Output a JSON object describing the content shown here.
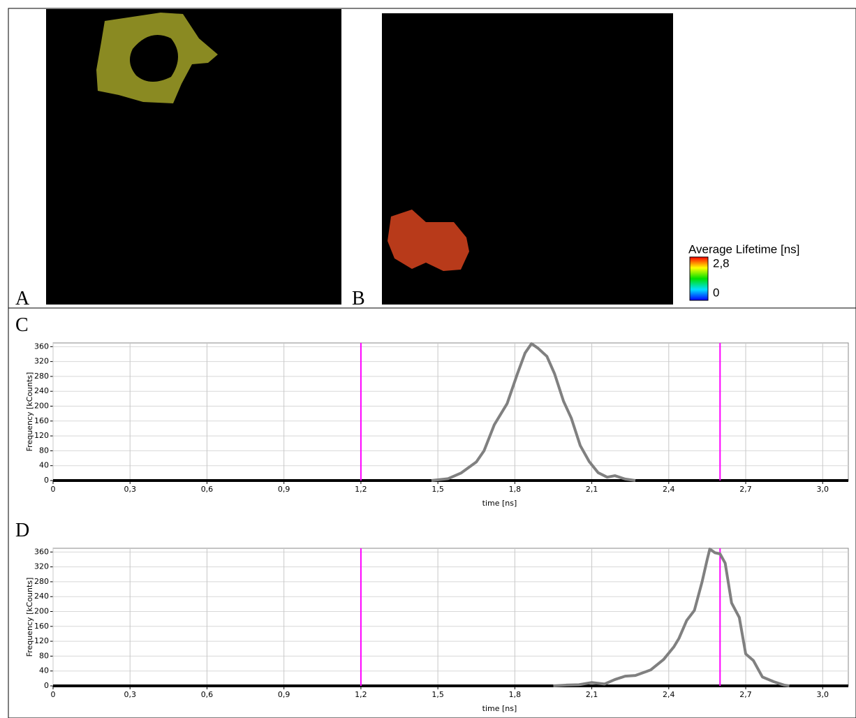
{
  "panel_labels": [
    "A",
    "B"
  ],
  "colorbar": {
    "title": "Average Lifetime [ns]",
    "ticks": [
      {
        "value": 2.8,
        "label": "2,8"
      },
      0
    ]
  },
  "chart_data": [
    {
      "type": "line",
      "label": "C",
      "xlabel": "time [ns]",
      "ylabel": "Frequency [kCounts]",
      "xlim": [
        0,
        3.1
      ],
      "ylim": [
        0,
        370
      ],
      "xticks": [
        0,
        {
          "value": 0.3,
          "label": "0,3"
        },
        {
          "value": 0.6,
          "label": "0,6"
        },
        {
          "value": 0.9,
          "label": "0,9"
        },
        {
          "value": 1.2,
          "label": "1,2"
        },
        {
          "value": 1.5,
          "label": "1,5"
        },
        {
          "value": 1.8,
          "label": "1,8"
        },
        {
          "value": 2.1,
          "label": "2,1"
        },
        {
          "value": 2.4,
          "label": "2,4"
        },
        {
          "value": 2.7,
          "label": "2,7"
        },
        {
          "value": 3.0,
          "label": "3,0"
        }
      ],
      "yticks": [
        0,
        40,
        80,
        120,
        160,
        200,
        240,
        280,
        320,
        360
      ],
      "grid": true,
      "markers": {
        "color": "#ff00ff",
        "x": [
          1.2,
          2.6
        ]
      },
      "x": [
        1.475,
        1.54,
        1.59,
        1.65,
        1.68,
        1.72,
        1.77,
        1.81,
        1.84,
        1.865,
        1.89,
        1.925,
        1.955,
        1.99,
        2.02,
        2.055,
        2.09,
        2.125,
        2.16,
        2.19,
        2.23,
        2.27
      ],
      "series": [
        {
          "color": "#808080",
          "values": [
            0,
            5,
            20,
            50,
            80,
            150,
            207,
            287,
            343,
            368,
            356,
            334,
            287,
            213,
            168,
            94,
            51,
            21,
            9,
            13,
            4,
            0
          ]
        }
      ]
    },
    {
      "type": "line",
      "label": "D",
      "xlabel": "time [ns]",
      "ylabel": "Frequency [kCounts]",
      "xlim": [
        0,
        3.1
      ],
      "ylim": [
        0,
        370
      ],
      "xticks": [
        0,
        {
          "value": 0.3,
          "label": "0,3"
        },
        {
          "value": 0.6,
          "label": "0,6"
        },
        {
          "value": 0.9,
          "label": "0,9"
        },
        {
          "value": 1.2,
          "label": "1,2"
        },
        {
          "value": 1.5,
          "label": "1,5"
        },
        {
          "value": 1.8,
          "label": "1,8"
        },
        {
          "value": 2.1,
          "label": "2,1"
        },
        {
          "value": 2.4,
          "label": "2,4"
        },
        {
          "value": 2.7,
          "label": "2,7"
        },
        {
          "value": 3.0,
          "label": "3,0"
        }
      ],
      "yticks": [
        0,
        40,
        80,
        120,
        160,
        200,
        240,
        280,
        320,
        360
      ],
      "grid": true,
      "markers": {
        "color": "#ff00ff",
        "x": [
          1.2,
          2.6
        ]
      },
      "x": [
        1.95,
        2.0,
        2.05,
        2.1,
        2.15,
        2.19,
        2.23,
        2.27,
        2.33,
        2.38,
        2.42,
        2.44,
        2.47,
        2.5,
        2.53,
        2.55,
        2.56,
        2.58,
        2.6,
        2.62,
        2.645,
        2.675,
        2.7,
        2.73,
        2.765,
        2.81,
        2.85,
        2.87
      ],
      "series": [
        {
          "color": "#808080",
          "values": [
            0,
            2,
            3,
            9,
            5,
            17,
            26,
            28,
            43,
            71,
            105,
            128,
            176,
            203,
            280,
            340,
            368,
            358,
            355,
            330,
            223,
            184,
            86,
            68,
            24,
            11,
            2,
            0
          ]
        }
      ]
    }
  ]
}
